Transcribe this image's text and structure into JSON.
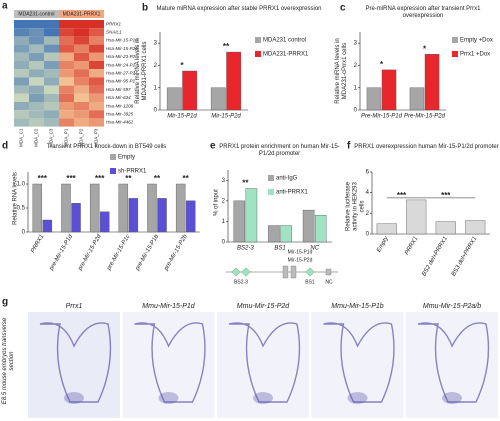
{
  "heatmap": {
    "label": "a",
    "groups": [
      "MDA231-control",
      "MDA231-PRRX1"
    ],
    "columns": [
      "MDA_C1",
      "MDA_C2",
      "MDA_C3",
      "MDA_P1",
      "MDA_P2",
      "MDA_P3"
    ],
    "rows": [
      "PRRX1",
      "SNAIL1",
      "Hsa-Mir-15-P1d",
      "Hsa-Mir-15-P2d",
      "Hsa-Mir-23-P2",
      "Hsa-Mir-24-P1",
      "Hsa-Mir-27-P2",
      "Hsa-Mir-95-P2",
      "Hsa-Mir-597",
      "Hsa-Mir-634",
      "Hsa-Mir-1206",
      "Hsa-Mir-3925",
      "Hsa-Mir-4462"
    ],
    "values": [
      [
        -1,
        -1,
        -1,
        1,
        1,
        1
      ],
      [
        -0.9,
        -0.8,
        -1,
        0.9,
        1,
        0.8
      ],
      [
        -0.6,
        -0.8,
        -0.5,
        0.7,
        0.9,
        0.6
      ],
      [
        -0.7,
        -0.5,
        -0.8,
        0.8,
        0.6,
        0.9
      ],
      [
        -0.5,
        -0.7,
        -0.4,
        0.4,
        0.8,
        0.5
      ],
      [
        -0.6,
        -0.4,
        -0.7,
        0.6,
        0.5,
        0.9
      ],
      [
        -0.4,
        -0.6,
        -0.5,
        0.5,
        0.7,
        0.4
      ],
      [
        -0.7,
        -0.3,
        -0.6,
        0.3,
        0.6,
        0.8
      ],
      [
        -0.5,
        -0.6,
        -0.3,
        0.6,
        0.4,
        0.7
      ],
      [
        -0.3,
        -0.7,
        -0.5,
        0.7,
        0.3,
        0.5
      ],
      [
        -0.6,
        -0.5,
        -0.4,
        0.5,
        0.6,
        0.4
      ],
      [
        -0.4,
        -0.5,
        -0.6,
        0.4,
        0.5,
        0.7
      ],
      [
        -0.5,
        -0.4,
        -0.5,
        0.6,
        0.4,
        0.5
      ]
    ]
  },
  "chart_data": [
    {
      "type": "bar",
      "label": "b",
      "title": "Mature miRNA expression after stable PRRX1 overexpression",
      "ylabel": "Relative miRNA levels in MDA231-PRRX1 cells",
      "categories": [
        "Mir-15-P1d",
        "Mir-15-P2d"
      ],
      "series": [
        {
          "name": "MDA231 control",
          "color": "#a6a6a6",
          "values": [
            1,
            1
          ]
        },
        {
          "name": "MDA231-PRRX1",
          "color": "#e8262b",
          "values": [
            1.75,
            2.6
          ]
        }
      ],
      "ylim": [
        0,
        3.5
      ],
      "yticks": [
        0,
        1,
        2,
        3
      ],
      "annotations": [
        "*",
        "**"
      ]
    },
    {
      "type": "bar",
      "label": "c",
      "title": "Pre-miRNA expression after transient Prrx1 overexpression",
      "ylabel": "Relative miRNA levels in MDA231-cPrrx1 cells",
      "categories": [
        "Pre-Mir-15-P1d",
        "Pre-Mir-15-P2d"
      ],
      "series": [
        {
          "name": "Empty +Dox",
          "color": "#a6a6a6",
          "values": [
            1,
            1
          ]
        },
        {
          "name": "Prrx1 +Dox",
          "color": "#e8262b",
          "values": [
            1.8,
            2.5
          ]
        }
      ],
      "ylim": [
        0,
        3.5
      ],
      "yticks": [
        0,
        1,
        2,
        3
      ],
      "annotations": [
        "*",
        "*"
      ]
    },
    {
      "type": "bar",
      "label": "d",
      "title": "Transient PRRX1 knock-down in BT549 cells",
      "ylabel": "Relative RNA levels",
      "categories": [
        "PRRX1",
        "pre-Mir-15-P1d",
        "pre-Mir-15-P2d",
        "pre-Mir-15-P1c",
        "pre-Mir-15-P1b",
        "pre-Mir-15-P2b"
      ],
      "series": [
        {
          "name": "Empty",
          "color": "#a6a6a6",
          "values": [
            1,
            1,
            1,
            1,
            1,
            1
          ]
        },
        {
          "name": "sh-PRRX1",
          "color": "#5b4fd6",
          "values": [
            0.25,
            0.6,
            0.42,
            0.7,
            0.7,
            0.65
          ]
        }
      ],
      "ylim": [
        0,
        1.25
      ],
      "yticks": [
        0,
        0.5,
        {
          "value": 1,
          "label": "1.0"
        }
      ],
      "annotations": [
        "***",
        "***",
        "***",
        "**",
        "**",
        "**"
      ]
    },
    {
      "type": "bar",
      "label": "e",
      "title": "PRRX1 protein enrichment on human Mir-15-P1/2d promoter",
      "ylabel": "% of input",
      "categories": [
        "BS2-3",
        "BS1",
        "NC"
      ],
      "series": [
        {
          "name": "anti-IgG",
          "color": "#a6a6a6",
          "values": [
            2.0,
            0.8,
            1.55
          ]
        },
        {
          "name": "anti-PRRX1",
          "color": "#9fe3c4",
          "values": [
            2.6,
            0.8,
            1.3
          ]
        }
      ],
      "ylim": [
        0,
        3.5
      ],
      "yticks": [
        0,
        1,
        2,
        3
      ],
      "annotations": [
        "**"
      ],
      "diagram_labels": [
        "Mir-15-P1d",
        "Mir-15-P2d",
        "BS2-3",
        "BS1",
        "NC"
      ]
    },
    {
      "type": "bar",
      "label": "f",
      "title": "PRRX1 overexpression human Mir-15-P1/2d promoter",
      "ylabel": "Relative luciferase activity in HEK293 cells",
      "categories": [
        "Empty",
        "PRRX1",
        "BS2 del+PRRX1",
        "BS3 del+PRRX1"
      ],
      "series": [
        {
          "name": null,
          "color": "#d9d9d9",
          "values": [
            1,
            3.3,
            1.2,
            1.3
          ]
        }
      ],
      "ylim": [
        0,
        6
      ],
      "yticks": [
        0,
        2,
        4,
        6
      ],
      "annotations": [
        "***",
        "***"
      ]
    }
  ],
  "panel_g": {
    "label": "g",
    "side_label": "E8.5 mouse embryos transverse section",
    "images": [
      "Prrx1",
      "Mmu-Mir-15-P1d",
      "Mmu-Mir-15-P2d",
      "Mmu-Mir-15-P1b",
      "Mmu-Mir-15-P2a/b"
    ]
  }
}
